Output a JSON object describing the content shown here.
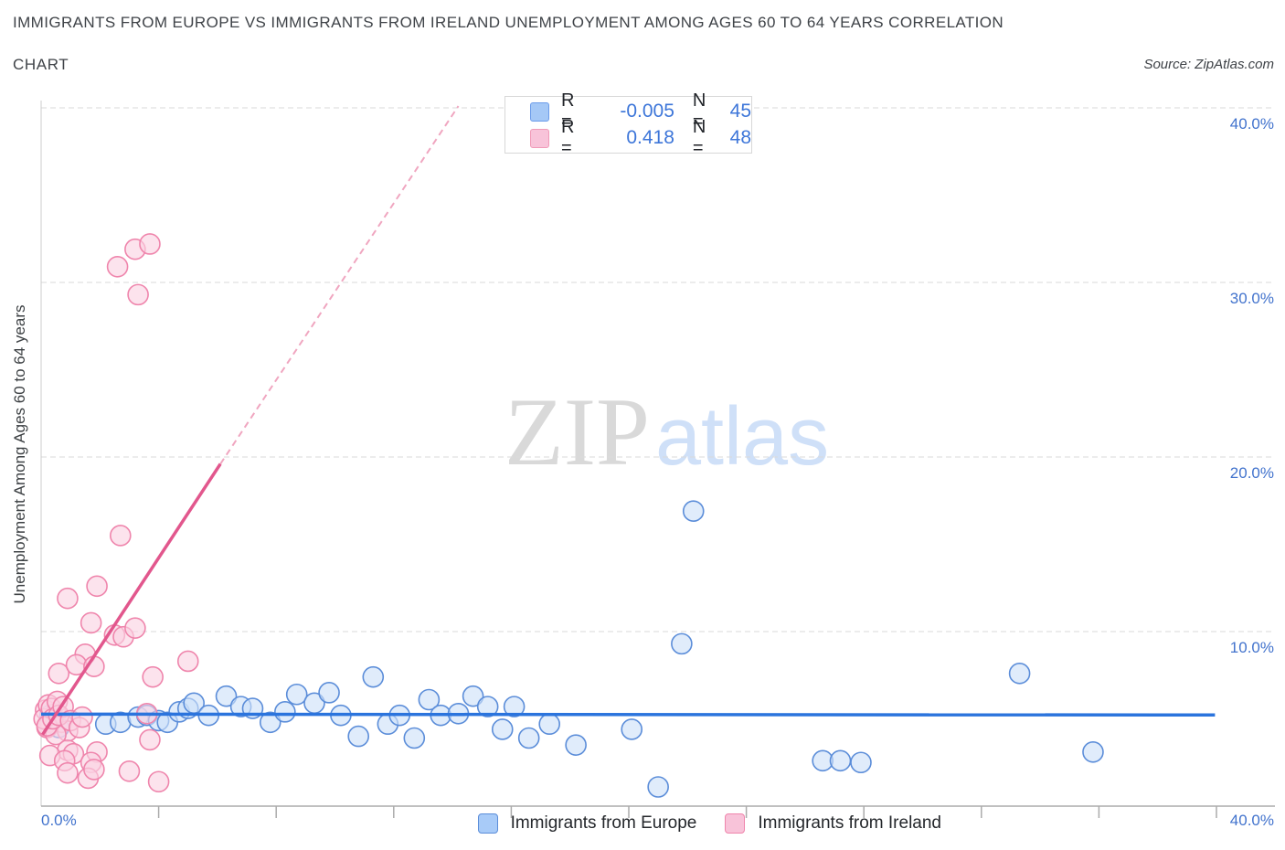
{
  "header": {
    "title": "IMMIGRANTS FROM EUROPE VS IMMIGRANTS FROM IRELAND UNEMPLOYMENT AMONG AGES 60 TO 64 YEARS CORRELATION",
    "chart_label": "CHART",
    "source": "Source: ZipAtlas.com"
  },
  "watermark": {
    "zip": "ZIP",
    "atlas": "atlas"
  },
  "legend_box": {
    "rows": [
      {
        "series": "europe",
        "r_label": "R =",
        "r_value": "-0.005",
        "n_label": "N =",
        "n_value": "45",
        "swatch_fill": "#a5c8f6",
        "swatch_border": "#6c9cea"
      },
      {
        "series": "ireland",
        "r_label": "R =",
        "r_value": "0.418",
        "n_label": "N =",
        "n_value": "48",
        "swatch_fill": "#f8c3d9",
        "swatch_border": "#f09ab8"
      }
    ]
  },
  "bottom_legend": [
    {
      "label": "Immigrants from Europe",
      "swatch_fill": "#a8cbf8",
      "swatch_border": "#5b8dd9"
    },
    {
      "label": "Immigrants from Ireland",
      "swatch_fill": "#f8c3d9",
      "swatch_border": "#ef85ac"
    }
  ],
  "chart_data": {
    "type": "scatter",
    "title": "Immigrants from Europe vs Immigrants from Ireland Unemployment Among Ages 60 to 64 years Correlation",
    "xlabel": "",
    "ylabel": "Unemployment Among Ages 60 to 64 years",
    "xlim": [
      0,
      42
    ],
    "ylim": [
      0,
      40.4
    ],
    "grid": "horizontal-dashed",
    "y_ticks": [
      {
        "value": 40,
        "label": "40.0%"
      },
      {
        "value": 30,
        "label": "30.0%"
      },
      {
        "value": 20,
        "label": "20.0%"
      },
      {
        "value": 10,
        "label": "10.0%"
      }
    ],
    "x_tick_labels": [
      {
        "value": 0,
        "label": "0.0%",
        "align": "left"
      },
      {
        "value": 40,
        "label": "40.0%",
        "align": "right"
      }
    ],
    "x_minor_tick_step": 4,
    "series": [
      {
        "name": "Immigrants from Europe",
        "r": -0.005,
        "n": 45,
        "point_stroke": "#5b8dd9",
        "point_fill": "#cde0f8",
        "points": [
          [
            0.3,
            5.2
          ],
          [
            0.6,
            4.5
          ],
          [
            2.2,
            4.7
          ],
          [
            2.7,
            4.8
          ],
          [
            3.3,
            5.1
          ],
          [
            3.6,
            5.2
          ],
          [
            4.0,
            4.9
          ],
          [
            4.3,
            4.8
          ],
          [
            4.7,
            5.4
          ],
          [
            5.0,
            5.6
          ],
          [
            5.2,
            5.9
          ],
          [
            5.7,
            5.2
          ],
          [
            6.3,
            6.3
          ],
          [
            6.8,
            5.7
          ],
          [
            7.2,
            5.6
          ],
          [
            7.8,
            4.8
          ],
          [
            8.3,
            5.4
          ],
          [
            8.7,
            6.4
          ],
          [
            9.3,
            5.9
          ],
          [
            9.8,
            6.5
          ],
          [
            10.2,
            5.2
          ],
          [
            10.8,
            4.0
          ],
          [
            11.3,
            7.4
          ],
          [
            11.8,
            4.7
          ],
          [
            12.2,
            5.2
          ],
          [
            12.7,
            3.9
          ],
          [
            13.2,
            6.1
          ],
          [
            13.6,
            5.2
          ],
          [
            14.2,
            5.3
          ],
          [
            14.7,
            6.3
          ],
          [
            15.2,
            5.7
          ],
          [
            15.7,
            4.4
          ],
          [
            16.1,
            5.7
          ],
          [
            16.6,
            3.9
          ],
          [
            17.3,
            4.7
          ],
          [
            18.2,
            3.5
          ],
          [
            20.1,
            4.4
          ],
          [
            21.0,
            1.1
          ],
          [
            21.8,
            9.3
          ],
          [
            22.2,
            16.9
          ],
          [
            26.6,
            2.6
          ],
          [
            27.2,
            2.6
          ],
          [
            27.9,
            2.5
          ],
          [
            33.3,
            7.6
          ],
          [
            35.8,
            3.1
          ]
        ],
        "trend": {
          "x1": 0,
          "y1": 5.27,
          "x2": 39.95,
          "y2": 5.22,
          "color": "#2b74dd",
          "style": "solid"
        }
      },
      {
        "name": "Immigrants from Ireland",
        "r": 0.418,
        "n": 48,
        "point_stroke": "#ef85ac",
        "point_fill": "#fad2e2",
        "points": [
          [
            2.6,
            30.9
          ],
          [
            3.2,
            31.9
          ],
          [
            3.7,
            32.2
          ],
          [
            3.3,
            29.3
          ],
          [
            2.7,
            15.5
          ],
          [
            1.9,
            12.6
          ],
          [
            0.9,
            11.9
          ],
          [
            1.7,
            10.5
          ],
          [
            2.5,
            9.8
          ],
          [
            2.8,
            9.7
          ],
          [
            3.2,
            10.2
          ],
          [
            1.5,
            8.7
          ],
          [
            0.6,
            7.6
          ],
          [
            1.2,
            8.1
          ],
          [
            1.8,
            8.0
          ],
          [
            3.8,
            7.4
          ],
          [
            5.0,
            8.3
          ],
          [
            0.15,
            5.5
          ],
          [
            0.3,
            4.8
          ],
          [
            0.5,
            5.3
          ],
          [
            0.7,
            4.8
          ],
          [
            0.9,
            4.3
          ],
          [
            0.2,
            4.5
          ],
          [
            0.5,
            4.1
          ],
          [
            3.6,
            5.3
          ],
          [
            3.7,
            3.8
          ],
          [
            0.9,
            3.2
          ],
          [
            1.1,
            3.0
          ],
          [
            1.9,
            3.1
          ],
          [
            1.7,
            2.5
          ],
          [
            1.6,
            1.6
          ],
          [
            3.0,
            2.0
          ],
          [
            4.0,
            1.4
          ],
          [
            0.3,
            2.9
          ],
          [
            0.8,
            2.6
          ],
          [
            0.9,
            1.9
          ],
          [
            1.8,
            2.1
          ],
          [
            0.1,
            5.0
          ],
          [
            0.2,
            4.6
          ],
          [
            0.25,
            5.8
          ],
          [
            0.35,
            5.6
          ],
          [
            0.4,
            5.0
          ],
          [
            0.55,
            6.0
          ],
          [
            0.6,
            5.2
          ],
          [
            0.75,
            5.7
          ],
          [
            1.0,
            4.9
          ],
          [
            1.3,
            4.5
          ],
          [
            1.4,
            5.1
          ]
        ],
        "trend": {
          "x1": 0.05,
          "y1": 4.1,
          "x2": 6.1,
          "y2": 19.6,
          "color": "#e2578d",
          "style": "solid",
          "extension": {
            "x2": 14.2,
            "y2": 40.1,
            "color": "#f0a6c0",
            "style": "dashed"
          }
        }
      }
    ]
  }
}
